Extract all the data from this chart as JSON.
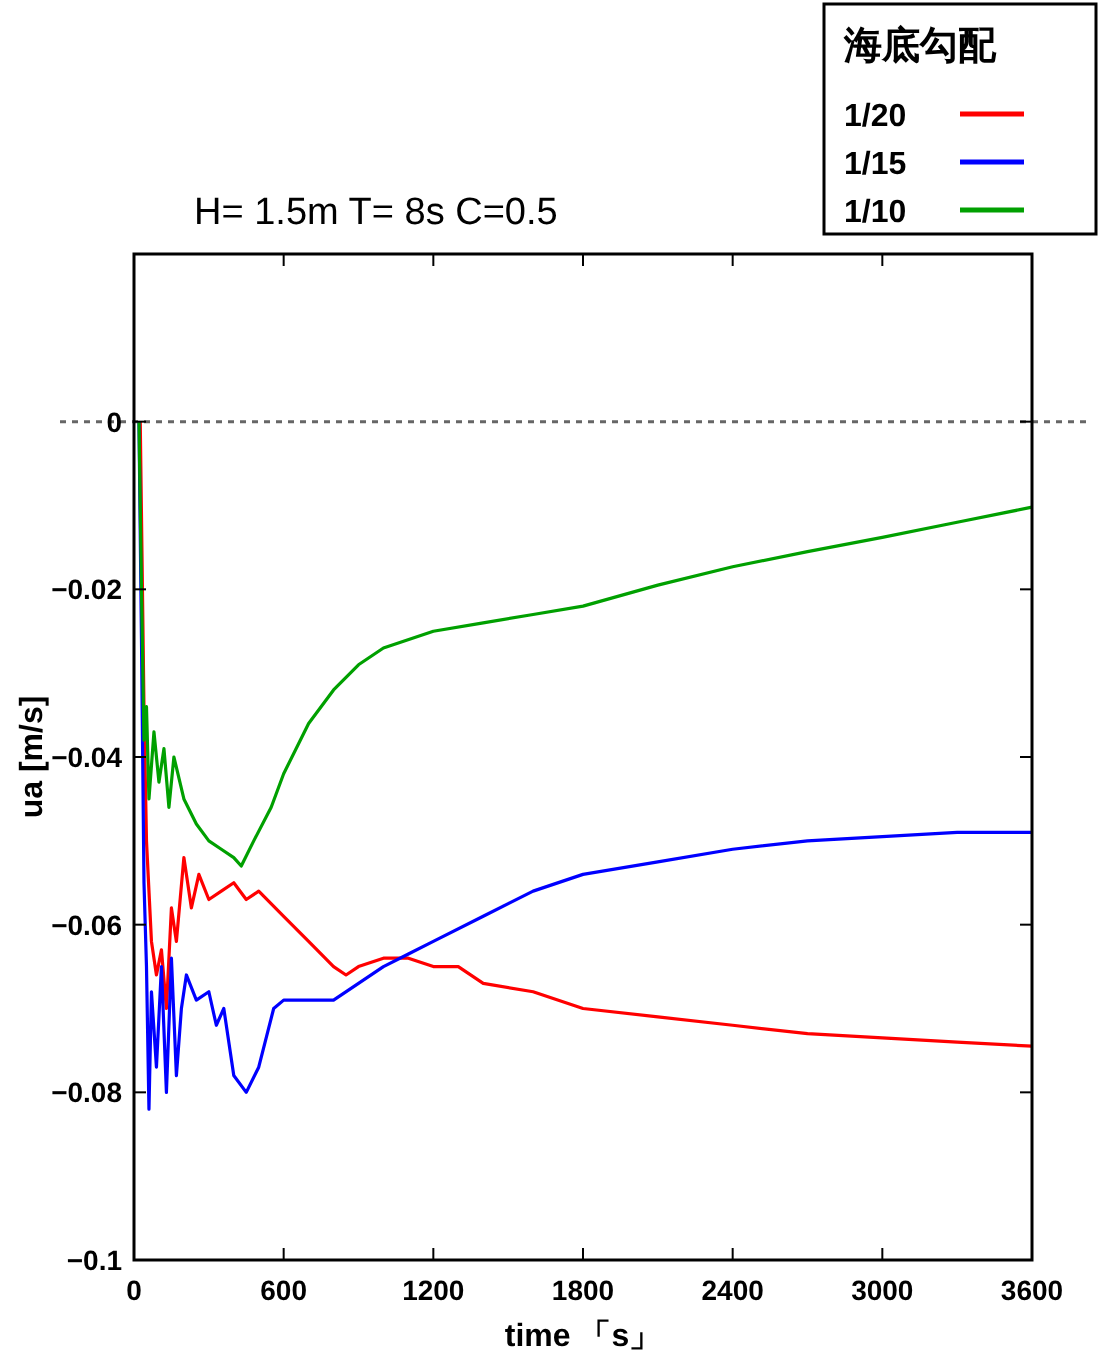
{
  "chart_data": {
    "type": "line",
    "title": "H= 1.5m T= 8s C=0.5",
    "xlabel": "time 「s」",
    "ylabel": "ua [m/s]",
    "legend_title": "海底勾配",
    "legend": "top right",
    "xlim": [
      0,
      3600
    ],
    "xticks": [
      0,
      600,
      1200,
      1800,
      2400,
      3000,
      3600
    ],
    "ylim": [
      -0.1,
      0.02
    ],
    "yticks": [
      {
        "value": -0.1,
        "label": "−0.1"
      },
      {
        "value": -0.08,
        "label": "−0.08"
      },
      {
        "value": -0.06,
        "label": "−0.06"
      },
      {
        "value": -0.04,
        "label": "−0.04"
      },
      {
        "value": -0.02,
        "label": "−0.02"
      },
      0
    ],
    "ref_lines": [
      {
        "axis": "y",
        "value": 0,
        "label": null,
        "color": "#666666",
        "line_style": "dotted"
      }
    ],
    "series": [
      {
        "name": "1/20",
        "color": "#ff0000",
        "x": [
          25,
          30,
          40,
          50,
          70,
          90,
          110,
          130,
          150,
          170,
          200,
          230,
          260,
          300,
          350,
          400,
          450,
          500,
          600,
          700,
          800,
          850,
          900,
          1000,
          1100,
          1200,
          1300,
          1400,
          1600,
          1800,
          2100,
          2400,
          2700,
          3000,
          3300,
          3600
        ],
        "values": [
          0,
          null,
          -0.034,
          -0.05,
          -0.062,
          -0.066,
          -0.063,
          -0.07,
          -0.058,
          -0.062,
          -0.052,
          -0.058,
          -0.054,
          -0.057,
          -0.056,
          -0.055,
          -0.057,
          -0.056,
          -0.059,
          -0.062,
          -0.065,
          -0.066,
          -0.065,
          -0.064,
          -0.064,
          -0.065,
          -0.065,
          -0.067,
          -0.068,
          -0.07,
          -0.071,
          -0.072,
          -0.073,
          -0.0735,
          -0.074,
          -0.0745
        ]
      },
      {
        "name": "1/15",
        "color": "#0000ff",
        "x": [
          20,
          30,
          40,
          50,
          60,
          70,
          90,
          110,
          130,
          150,
          170,
          190,
          210,
          250,
          300,
          330,
          360,
          400,
          450,
          500,
          560,
          600,
          700,
          800,
          900,
          1000,
          1100,
          1200,
          1400,
          1600,
          1800,
          2100,
          2400,
          2700,
          3000,
          3300,
          3600
        ],
        "values": [
          0,
          -0.026,
          -0.055,
          -0.065,
          -0.082,
          -0.068,
          -0.077,
          -0.065,
          -0.08,
          -0.064,
          -0.078,
          -0.07,
          -0.066,
          -0.069,
          -0.068,
          -0.072,
          -0.07,
          -0.078,
          -0.08,
          -0.077,
          -0.07,
          -0.069,
          -0.069,
          -0.069,
          -0.067,
          -0.065,
          -0.0635,
          -0.062,
          -0.059,
          -0.056,
          -0.054,
          -0.0525,
          -0.051,
          -0.05,
          -0.0495,
          -0.049,
          -0.049
        ]
      },
      {
        "name": "1/10",
        "color": "#00a000",
        "x": [
          20,
          30,
          40,
          50,
          60,
          80,
          100,
          120,
          140,
          160,
          200,
          250,
          300,
          350,
          400,
          430,
          480,
          550,
          600,
          700,
          800,
          900,
          1000,
          1200,
          1400,
          1600,
          1800,
          2100,
          2400,
          2700,
          3000,
          3300,
          3600
        ],
        "values": [
          0,
          -0.02,
          -0.038,
          -0.034,
          -0.045,
          -0.037,
          -0.043,
          -0.039,
          -0.046,
          -0.04,
          -0.045,
          -0.048,
          -0.05,
          -0.051,
          -0.052,
          -0.053,
          -0.05,
          -0.046,
          -0.042,
          -0.036,
          -0.032,
          -0.029,
          -0.027,
          -0.025,
          -0.024,
          -0.023,
          -0.022,
          -0.0195,
          -0.0173,
          -0.0155,
          -0.0138,
          -0.012,
          -0.0102
        ]
      }
    ]
  }
}
